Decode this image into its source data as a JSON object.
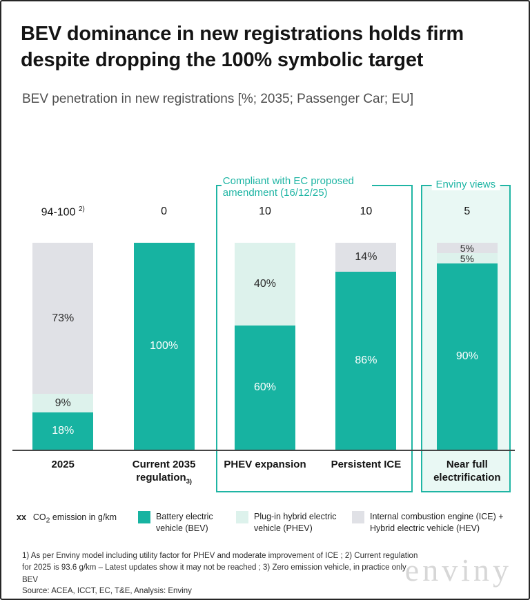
{
  "page": {
    "title": "BEV dominance in new registrations holds firm despite dropping the 100% symbolic target",
    "subtitle": "BEV penetration in new registrations [%; 2035; Passenger Car; EU]"
  },
  "chart_data": {
    "type": "bar",
    "stacked": true,
    "unit": "%",
    "ylim": [
      0,
      100
    ],
    "grid": false,
    "categories": [
      "2025",
      "Current 2035 regulation",
      "PHEV expansion",
      "Persistent ICE",
      "Near full electrification"
    ],
    "category_markers": [
      "",
      "3)",
      "",
      "",
      ""
    ],
    "co2_emission_labels": [
      "94-100",
      "0",
      "10",
      "10",
      "5"
    ],
    "co2_emission_markers": [
      "2)",
      "",
      "",
      "",
      ""
    ],
    "series": [
      {
        "name": "Battery electric vehicle (BEV)",
        "color": "#17b3a1",
        "values": [
          18,
          100,
          60,
          86,
          90
        ]
      },
      {
        "name": "Plug-in hybrid electric vehicle (PHEV)",
        "color": "#ddf2ec",
        "values": [
          9,
          0,
          40,
          0,
          5
        ]
      },
      {
        "name": "Internal combustion engine (ICE) + Hybrid electric vehicle (HEV)",
        "color": "#e0e1e6",
        "values": [
          73,
          0,
          0,
          14,
          5
        ]
      }
    ],
    "group_boxes": [
      {
        "label": "Compliant with EC proposed amendment (16/12/25)",
        "categories": [
          "PHEV expansion",
          "Persistent ICE"
        ],
        "accent_color": "#1fb5a4"
      },
      {
        "label": "Enviny views",
        "categories": [
          "Near full electrification"
        ],
        "accent_color": "#1fb5a4",
        "fill_color": "#e9f8f4"
      }
    ]
  },
  "legend": {
    "xx": "xx",
    "co2_prefix": "CO",
    "co2_sub": "2",
    "co2_rest": " emission in g/km",
    "items": [
      {
        "label": "Battery electric vehicle (BEV)"
      },
      {
        "label": "Plug-in hybrid electric vehicle (PHEV)"
      },
      {
        "label": "Internal combustion engine (ICE) + Hybrid electric vehicle (HEV)"
      }
    ]
  },
  "footnotes": "1) As per Enviny model including utility factor for PHEV and moderate improvement of ICE ; 2) Current regulation for 2025 is 93.6 g/km – Latest updates show it may not be reached ; 3) Zero emission vehicle, in practice only BEV",
  "source": "Source: ACEA, ICCT, EC, T&E, Analysis: Enviny",
  "watermark": "enviny"
}
